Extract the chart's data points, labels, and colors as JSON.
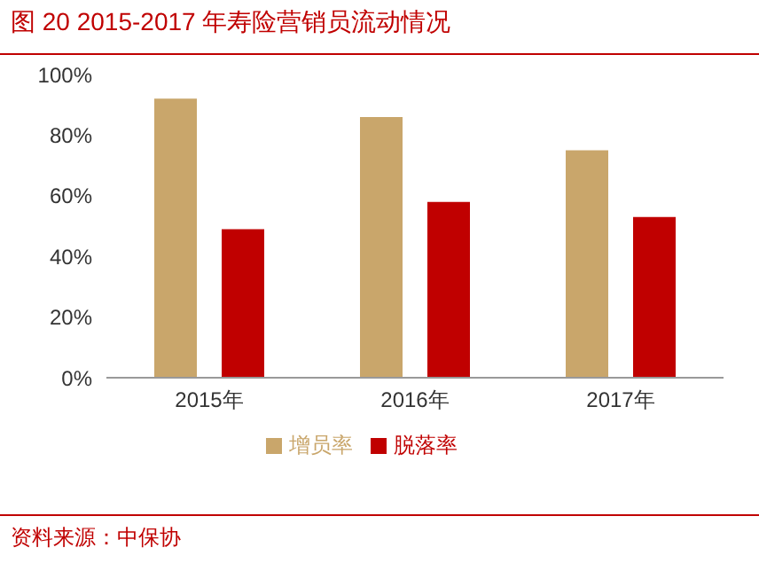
{
  "chart_data": {
    "type": "bar",
    "title": "图 20 2015-2017 年寿险营销员流动情况",
    "categories": [
      "2015年",
      "2016年",
      "2017年"
    ],
    "series": [
      {
        "name": "增员率",
        "color": "#c9a66b",
        "values": [
          92,
          86,
          75
        ]
      },
      {
        "name": "脱落率",
        "color": "#c00000",
        "values": [
          49,
          58,
          53
        ]
      }
    ],
    "ylim": [
      0,
      100
    ],
    "yticks": [
      {
        "value": 0,
        "label": "0%"
      },
      {
        "value": 20,
        "label": "20%"
      },
      {
        "value": 40,
        "label": "40%"
      },
      {
        "value": 60,
        "label": "60%"
      },
      {
        "value": 80,
        "label": "80%"
      },
      {
        "value": 100,
        "label": "100%"
      }
    ],
    "grid": false,
    "legend": "bottom",
    "annotations": [
      "资料来源：中保协"
    ]
  }
}
